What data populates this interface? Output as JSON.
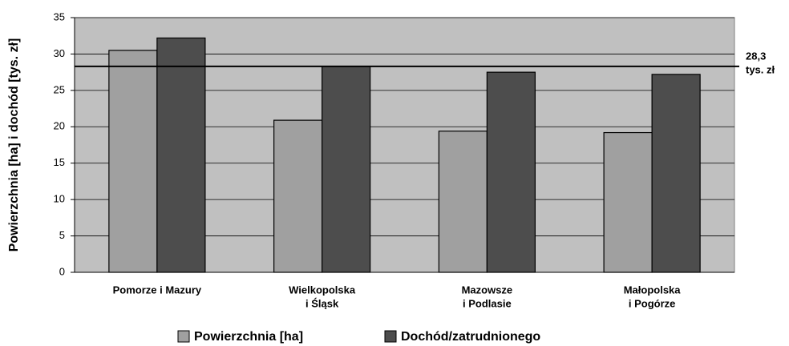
{
  "chart_data": {
    "type": "bar",
    "y_label": "Powierzchnia [ha] i dochód [tys. zł]",
    "categories": [
      [
        "Pomorze i Mazury"
      ],
      [
        "Wielkopolska",
        "i Śląsk"
      ],
      [
        "Mazowsze",
        "i Podlasie"
      ],
      [
        "Małopolska",
        "i Pogórze"
      ]
    ],
    "series": [
      {
        "name": "Powierzchnia [ha]",
        "color": "#a0a0a0",
        "values": [
          30.5,
          20.9,
          19.4,
          19.2
        ]
      },
      {
        "name": "Dochód/zatrudnionego",
        "color": "#4d4d4d",
        "values": [
          32.2,
          28.3,
          27.5,
          27.2
        ]
      }
    ],
    "reference_line": {
      "value": 28.3,
      "label": [
        "28,3",
        "tys. zł"
      ]
    },
    "ylim": [
      0,
      35
    ],
    "yticks": [
      0,
      5,
      10,
      15,
      20,
      25,
      30,
      35
    ],
    "grid": true,
    "background": "#c0c0c0",
    "legend": "bottom"
  }
}
